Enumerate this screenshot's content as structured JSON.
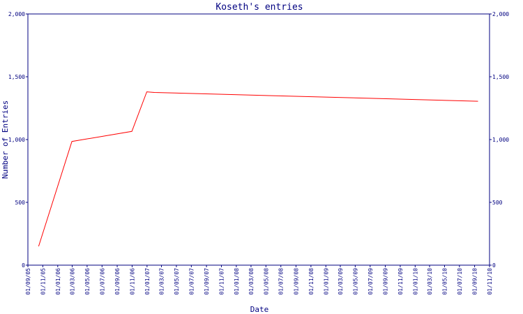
{
  "chart_data": {
    "type": "line",
    "title": "Koseth's entries",
    "x_label": "Date",
    "y_label": "Number of Entries",
    "x": [
      "15/10/05",
      "28/02/06",
      "31/10/06",
      "31/12/06",
      "31/01/07",
      "15/09/10"
    ],
    "series": [
      {
        "name": "Koseth",
        "color": "#ff0000",
        "values": [
          150,
          985,
          1065,
          1380,
          1375,
          1305
        ]
      }
    ],
    "ylim": [
      0,
      2000
    ],
    "yticks": [
      0,
      500,
      {
        "value": 1000,
        "label": "1,000"
      },
      {
        "value": 1500,
        "label": "1,500"
      },
      {
        "value": 2000,
        "label": "2,000"
      }
    ],
    "xlim": [
      "01/09/05",
      "01/11/10"
    ],
    "xticks": [
      "01/09/05",
      "01/11/05",
      "01/01/06",
      "01/03/06",
      "01/05/06",
      "01/07/06",
      "01/09/06",
      "01/11/06",
      "01/01/07",
      "01/03/07",
      "01/05/07",
      "01/07/07",
      "01/09/07",
      "01/11/07",
      "01/01/08",
      "01/03/08",
      "01/05/08",
      "01/07/08",
      "01/09/08",
      "01/11/08",
      "01/01/09",
      "01/03/09",
      "01/05/09",
      "01/07/09",
      "01/09/09",
      "01/11/09",
      "01/01/10",
      "01/03/10",
      "01/05/10",
      "01/07/10",
      "01/09/10",
      "01/11/10"
    ]
  }
}
